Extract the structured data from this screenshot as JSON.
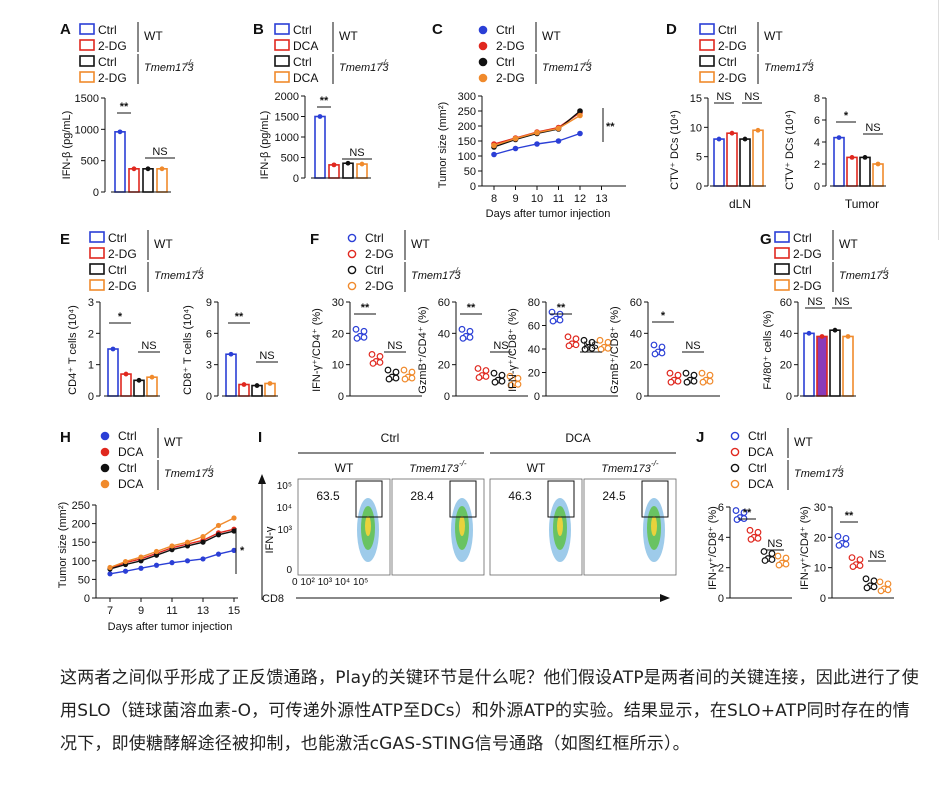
{
  "colors": {
    "blue": "#2b3fd6",
    "red": "#e0281f",
    "black": "#111111",
    "orange": "#f08a2c",
    "purple": "#8a3ab9"
  },
  "legend": {
    "ctrl": "Ctrl",
    "dg": "2-DG",
    "dca": "DCA",
    "wt": "WT",
    "ko": "Tmem173",
    "ko_sup": "-/-"
  },
  "panels": {
    "A": {
      "letter": "A",
      "ylabel": "IFN-β (pg/mL)",
      "yticks": [
        "0",
        "500",
        "1000",
        "1500"
      ],
      "sig": [
        "**",
        "NS"
      ]
    },
    "B": {
      "letter": "B",
      "ylabel": "IFN-β (pg/mL)",
      "yticks": [
        "0",
        "500",
        "1000",
        "1500",
        "2000"
      ],
      "sig": [
        "**",
        "NS"
      ]
    },
    "C": {
      "letter": "C",
      "ylabel": "Tumor size (mm²)",
      "yticks": [
        "0",
        "50",
        "100",
        "150",
        "200",
        "250",
        "300"
      ],
      "xticks": [
        "8",
        "9",
        "10",
        "11",
        "12",
        "13"
      ],
      "xlabel": "Days after tumor injection",
      "sig": "**"
    },
    "D": {
      "letter": "D",
      "ylabel1": "CTV⁺ DCs (10⁴)",
      "ylabel2": "CTV⁺ DCs (10⁴)",
      "yticks1": [
        "0",
        "5",
        "10",
        "15"
      ],
      "yticks2": [
        "0",
        "2",
        "4",
        "6",
        "8"
      ],
      "x1": "dLN",
      "x2": "Tumor",
      "sig1": [
        "NS",
        "NS"
      ],
      "sig2": [
        "*",
        "NS"
      ]
    },
    "E": {
      "letter": "E",
      "ylabel1": "CD4⁺ T cells (10⁴)",
      "ylabel2": "CD8⁺ T cells (10⁴)",
      "yticks1": [
        "0",
        "1",
        "2",
        "3"
      ],
      "yticks2": [
        "0",
        "3",
        "6",
        "9"
      ],
      "sig1": [
        "*",
        "NS"
      ],
      "sig2": [
        "**",
        "NS"
      ]
    },
    "F": {
      "letter": "F",
      "ylabels": [
        "IFN-γ⁺/CD4⁺ (%)",
        "GzmB⁺/CD4⁺ (%)",
        "IFN-γ⁺/CD8⁺ (%)",
        "GzmB⁺/CD8⁺ (%)"
      ],
      "yticks": [
        [
          "0",
          "10",
          "20",
          "30"
        ],
        [
          "0",
          "20",
          "40",
          "60"
        ],
        [
          "0",
          "20",
          "40",
          "60",
          "80"
        ],
        [
          "0",
          "20",
          "40",
          "60"
        ]
      ],
      "sig": [
        [
          "**",
          "NS"
        ],
        [
          "**",
          "NS"
        ],
        [
          "**",
          "NS"
        ],
        [
          "*",
          "NS"
        ]
      ]
    },
    "G": {
      "letter": "G",
      "ylabel": "F4/80⁺ cells (%)",
      "yticks": [
        "0",
        "20",
        "40",
        "60"
      ],
      "sig": [
        "NS",
        "NS"
      ]
    },
    "H": {
      "letter": "H",
      "ylabel": "Tumor size (mm²)",
      "yticks": [
        "0",
        "50",
        "100",
        "150",
        "200",
        "250"
      ],
      "xticks": [
        "7",
        "9",
        "11",
        "13",
        "15"
      ],
      "xlabel": "Days after tumor injection",
      "sig": "*"
    },
    "I": {
      "letter": "I",
      "groups": [
        "Ctrl",
        "DCA"
      ],
      "cols": [
        "WT",
        "Tmem173",
        "WT",
        "Tmem173"
      ],
      "values": [
        "63.5",
        "28.4",
        "46.3",
        "24.5"
      ],
      "yaxis": "IFN-γ",
      "xaxis": "CD8",
      "yticks": [
        "0",
        "10³",
        "10⁴",
        "10⁵"
      ],
      "xticks": "0 10² 10³ 10⁴ 10⁵"
    },
    "J": {
      "letter": "J",
      "ylabel1": "IFN-γ⁺/CD8⁺ (%)",
      "ylabel2": "IFN-γ⁺/CD4⁺ (%)",
      "yticks1": [
        "0",
        "2",
        "4",
        "6"
      ],
      "yticks2": [
        "0",
        "10",
        "20",
        "30"
      ],
      "sig": [
        "**",
        "NS"
      ]
    }
  },
  "chart_data": [
    {
      "type": "bar",
      "panel": "A",
      "categories": [
        "Ctrl WT",
        "2-DG WT",
        "Ctrl Tmem173-/-",
        "2-DG Tmem173-/-"
      ],
      "values": [
        960,
        370,
        370,
        370
      ],
      "ylim": [
        0,
        1500
      ]
    },
    {
      "type": "bar",
      "panel": "B",
      "categories": [
        "Ctrl WT",
        "DCA WT",
        "Ctrl Tmem173-/-",
        "DCA Tmem173-/-"
      ],
      "values": [
        1500,
        320,
        360,
        340
      ],
      "ylim": [
        0,
        2000
      ]
    },
    {
      "type": "line",
      "panel": "C",
      "x": [
        8,
        9,
        10,
        11,
        12
      ],
      "series": [
        {
          "name": "Ctrl WT",
          "values": [
            105,
            125,
            140,
            150,
            175
          ]
        },
        {
          "name": "2-DG WT",
          "values": [
            140,
            160,
            180,
            195,
            245
          ]
        },
        {
          "name": "Ctrl Tmem173-/-",
          "values": [
            130,
            155,
            175,
            190,
            250
          ]
        },
        {
          "name": "2-DG Tmem173-/-",
          "values": [
            135,
            158,
            178,
            192,
            235
          ]
        }
      ],
      "ylim": [
        0,
        300
      ],
      "xlim": [
        7.5,
        13
      ]
    },
    {
      "type": "bar",
      "panel": "D-dLN",
      "values": [
        8,
        9,
        8,
        9.5
      ],
      "ylim": [
        0,
        15
      ]
    },
    {
      "type": "bar",
      "panel": "D-Tumor",
      "values": [
        4.4,
        2.6,
        2.6,
        2.0
      ],
      "ylim": [
        0,
        8
      ]
    },
    {
      "type": "bar",
      "panel": "E-CD4",
      "values": [
        1.5,
        0.7,
        0.5,
        0.6
      ],
      "ylim": [
        0,
        3
      ]
    },
    {
      "type": "bar",
      "panel": "E-CD8",
      "values": [
        4,
        1.1,
        1,
        1.2
      ],
      "ylim": [
        0,
        9
      ]
    },
    {
      "type": "scatter",
      "panel": "F-IFNg-CD4",
      "values": [
        20,
        12,
        7,
        7
      ],
      "ylim": [
        0,
        30
      ]
    },
    {
      "type": "scatter",
      "panel": "F-GzmB-CD4",
      "values": [
        40,
        15,
        12,
        10
      ],
      "ylim": [
        0,
        60
      ]
    },
    {
      "type": "scatter",
      "panel": "F-IFNg-CD8",
      "values": [
        68,
        47,
        44,
        44
      ],
      "ylim": [
        0,
        80
      ]
    },
    {
      "type": "scatter",
      "panel": "F-GzmB-CD8",
      "values": [
        30,
        12,
        12,
        12
      ],
      "ylim": [
        0,
        60
      ]
    },
    {
      "type": "bar",
      "panel": "G",
      "values": [
        40,
        38,
        42,
        38
      ],
      "ylim": [
        0,
        60
      ]
    },
    {
      "type": "line",
      "panel": "H",
      "x": [
        7,
        8,
        9,
        10,
        11,
        12,
        13,
        14,
        15
      ],
      "series": [
        {
          "name": "Ctrl WT",
          "values": [
            65,
            72,
            80,
            88,
            95,
            100,
            105,
            118,
            128
          ]
        },
        {
          "name": "DCA WT",
          "values": [
            80,
            95,
            105,
            120,
            135,
            145,
            155,
            175,
            185
          ]
        },
        {
          "name": "Ctrl Tmem173-/-",
          "values": [
            78,
            90,
            100,
            115,
            130,
            140,
            150,
            170,
            180
          ]
        },
        {
          "name": "DCA Tmem173-/-",
          "values": [
            82,
            98,
            110,
            125,
            140,
            150,
            165,
            195,
            215
          ]
        }
      ],
      "ylim": [
        0,
        250
      ]
    },
    {
      "type": "scatter",
      "panel": "J-CD8",
      "values": [
        5.5,
        4.2,
        2.8,
        2.5
      ],
      "ylim": [
        0,
        6
      ]
    },
    {
      "type": "scatter",
      "panel": "J-CD4",
      "values": [
        19,
        12,
        5,
        4
      ],
      "ylim": [
        0,
        30
      ]
    }
  ],
  "paragraph": "这两者之间似乎形成了正反馈通路，Play的关键环节是什么呢？他们假设ATP是两者间的关键连接，因此进行了使用SLO（链球菌溶血素-O，可传递外源性ATP至DCs）和外源ATP的实验。结果显示，在SLO+ATP同时存在的情况下，即使糖酵解途径被抑制，也能激活cGAS-STING信号通路（如图红框所示）。"
}
